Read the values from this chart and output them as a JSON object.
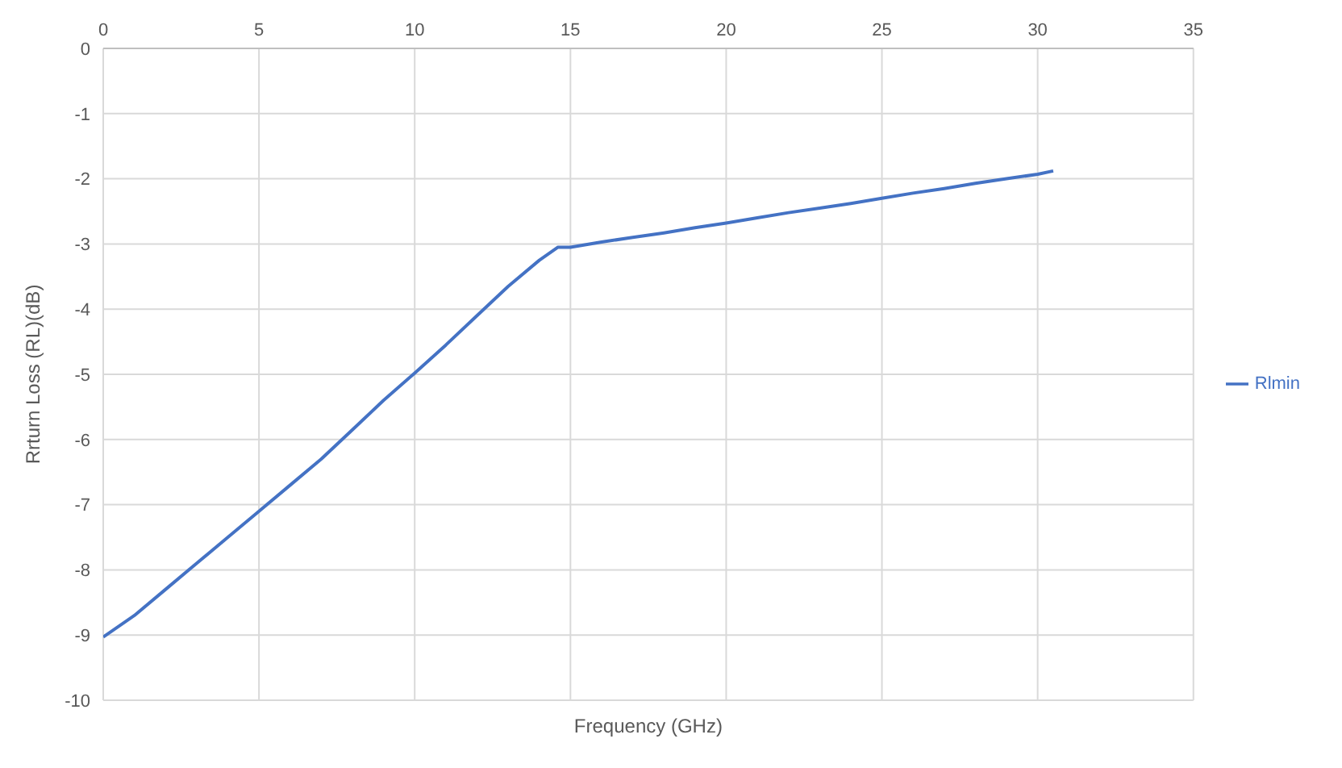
{
  "chart_data": {
    "type": "line",
    "xlabel": "Frequency (GHz)",
    "ylabel": "Rrturn Loss (RL)(dB)",
    "x": [
      0,
      1,
      2,
      3,
      4,
      5,
      6,
      7,
      8,
      9,
      10,
      11,
      12,
      13,
      14,
      14.6,
      15,
      16,
      17,
      18,
      19,
      20,
      21,
      22,
      23,
      24,
      25,
      26,
      27,
      28,
      29,
      30,
      30.5
    ],
    "series": [
      {
        "name": "Rlmin",
        "color": "#4472c4",
        "values": [
          -9.03,
          -8.7,
          -8.3,
          -7.9,
          -7.5,
          -7.1,
          -6.7,
          -6.3,
          -5.85,
          -5.4,
          -4.98,
          -4.55,
          -4.1,
          -3.65,
          -3.25,
          -3.05,
          -3.05,
          -2.97,
          -2.9,
          -2.83,
          -2.75,
          -2.68,
          -2.6,
          -2.52,
          -2.45,
          -2.38,
          -2.3,
          -2.22,
          -2.15,
          -2.07,
          -2.0,
          -1.93,
          -1.88
        ]
      }
    ],
    "xlim": [
      0,
      35
    ],
    "xticks": [
      0,
      5,
      10,
      15,
      20,
      25,
      30,
      35
    ],
    "ylim": [
      -10,
      0
    ],
    "yticks": [
      -10,
      -9,
      -8,
      -7,
      -6,
      -5,
      -4,
      -3,
      -2,
      -1,
      0
    ],
    "grid": true,
    "legend": "right",
    "marker": "none",
    "line_style": "solid"
  }
}
